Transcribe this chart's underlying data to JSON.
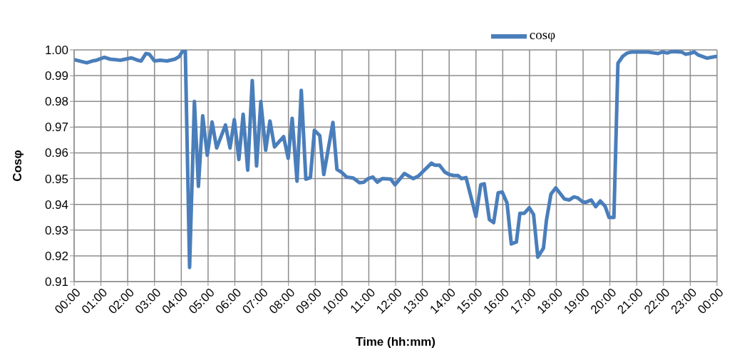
{
  "chart_data": {
    "type": "line",
    "xlabel": "Time (hh:mm)",
    "ylabel": "Cosφ",
    "x": [
      0,
      0.47,
      0.68,
      0.84,
      1.13,
      1.34,
      1.55,
      1.73,
      2.13,
      2.37,
      2.5,
      2.68,
      2.81,
      3.0,
      3.21,
      3.47,
      3.76,
      3.92,
      4.05,
      4.15,
      4.31,
      4.49,
      4.64,
      4.8,
      4.97,
      5.15,
      5.32,
      5.65,
      5.82,
      5.98,
      6.15,
      6.31,
      6.48,
      6.65,
      6.81,
      6.97,
      7.15,
      7.31,
      7.48,
      7.82,
      7.99,
      8.14,
      8.32,
      8.48,
      8.65,
      8.82,
      8.97,
      9.17,
      9.32,
      9.66,
      9.81,
      9.98,
      10.17,
      10.42,
      10.65,
      10.81,
      10.97,
      11.15,
      11.32,
      11.5,
      11.82,
      11.98,
      12.33,
      12.66,
      12.85,
      13.34,
      13.47,
      13.64,
      13.84,
      14.0,
      14.17,
      14.33,
      14.46,
      14.63,
      15.0,
      15.18,
      15.31,
      15.5,
      15.66,
      15.83,
      15.98,
      16.16,
      16.32,
      16.51,
      16.64,
      16.8,
      16.99,
      17.15,
      17.31,
      17.52,
      17.63,
      17.8,
      17.98,
      18.3,
      18.48,
      18.66,
      18.8,
      18.99,
      19.12,
      19.3,
      19.47,
      19.64,
      19.82,
      19.97,
      20.15,
      20.3,
      20.48,
      20.65,
      20.83,
      21.4,
      21.79,
      21.97,
      22.14,
      22.32,
      22.67,
      22.83,
      22.98,
      23.15,
      23.3,
      23.63,
      24.0
    ],
    "series": [
      {
        "name": "cosφ",
        "color": "#4a7ebb",
        "values": [
          0.9962,
          0.995,
          0.9957,
          0.996,
          0.9971,
          0.9964,
          0.9962,
          0.996,
          0.9969,
          0.996,
          0.9957,
          0.9986,
          0.9983,
          0.9957,
          0.996,
          0.9957,
          0.9964,
          0.9974,
          0.9995,
          0.9998,
          0.9155,
          0.98,
          0.947,
          0.9744,
          0.9591,
          0.972,
          0.9619,
          0.9708,
          0.9619,
          0.9729,
          0.9574,
          0.975,
          0.9533,
          0.9881,
          0.9549,
          0.9799,
          0.961,
          0.9724,
          0.9623,
          0.9663,
          0.9579,
          0.9734,
          0.949,
          0.9843,
          0.9498,
          0.9504,
          0.9688,
          0.9667,
          0.9516,
          0.9718,
          0.9536,
          0.9525,
          0.9506,
          0.9502,
          0.9484,
          0.9486,
          0.95,
          0.9506,
          0.9486,
          0.95,
          0.9498,
          0.9476,
          0.952,
          0.95,
          0.951,
          0.956,
          0.9552,
          0.9552,
          0.9525,
          0.9516,
          0.9512,
          0.9512,
          0.95,
          0.9504,
          0.9353,
          0.9476,
          0.948,
          0.9341,
          0.9329,
          0.9445,
          0.9448,
          0.9405,
          0.9246,
          0.9254,
          0.9365,
          0.9365,
          0.9387,
          0.9361,
          0.9195,
          0.923,
          0.9337,
          0.944,
          0.9464,
          0.9421,
          0.9417,
          0.9429,
          0.9425,
          0.9409,
          0.9409,
          0.9417,
          0.9391,
          0.9413,
          0.9393,
          0.9349,
          0.9349,
          0.9948,
          0.9975,
          0.9988,
          0.9992,
          0.9992,
          0.9986,
          0.9992,
          0.9988,
          0.9994,
          0.9992,
          0.9983,
          0.9986,
          0.9992,
          0.998,
          0.9968,
          0.9975
        ]
      }
    ],
    "xlim": [
      0,
      24
    ],
    "xticks": [
      {
        "value": 0,
        "label": "00:00"
      },
      {
        "value": 1,
        "label": "01:00"
      },
      {
        "value": 2,
        "label": "02:00"
      },
      {
        "value": 3,
        "label": "03:00"
      },
      {
        "value": 4,
        "label": "04:00"
      },
      {
        "value": 5,
        "label": "05:00"
      },
      {
        "value": 6,
        "label": "06:00"
      },
      {
        "value": 7,
        "label": "07:00"
      },
      {
        "value": 8,
        "label": "08:00"
      },
      {
        "value": 9,
        "label": "09:00"
      },
      {
        "value": 10,
        "label": "10:00"
      },
      {
        "value": 11,
        "label": "11:00"
      },
      {
        "value": 12,
        "label": "12:00"
      },
      {
        "value": 13,
        "label": "13:00"
      },
      {
        "value": 14,
        "label": "14:00"
      },
      {
        "value": 15,
        "label": "15:00"
      },
      {
        "value": 16,
        "label": "16:00"
      },
      {
        "value": 17,
        "label": "17:00"
      },
      {
        "value": 18,
        "label": "18:00"
      },
      {
        "value": 19,
        "label": "19:00"
      },
      {
        "value": 20,
        "label": "20:00"
      },
      {
        "value": 21,
        "label": "21:00"
      },
      {
        "value": 22,
        "label": "22:00"
      },
      {
        "value": 23,
        "label": "23:00"
      },
      {
        "value": 24,
        "label": "00:00"
      }
    ],
    "ylim": [
      0.91,
      1.0
    ],
    "yticks": [
      0.91,
      0.92,
      0.93,
      0.94,
      0.95,
      0.96,
      0.97,
      0.98,
      0.99,
      {
        "value": 1.0,
        "label": "1.00"
      }
    ],
    "grid": true,
    "legend": "top",
    "marker": "none",
    "line_style": "solid"
  }
}
